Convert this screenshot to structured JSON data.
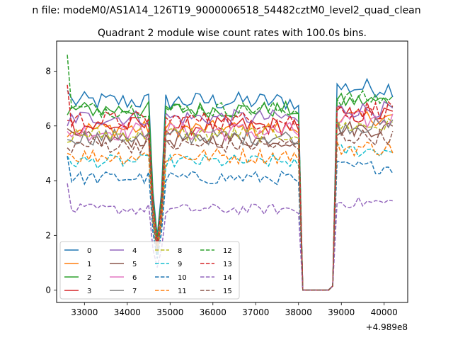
{
  "figure": {
    "suptitle": "n file: modeM0/AS1A14_126T19_9000006518_54482cztM0_level2_quad_clean"
  },
  "chart_data": {
    "type": "line",
    "title": "Quadrant 2 module wise count rates with 100.0s bins.",
    "xlabel": "",
    "ylabel": "",
    "x_offset_label": "+4.989e8",
    "xlim": [
      32350,
      40550
    ],
    "ylim": [
      -0.45,
      9.1
    ],
    "xticks": [
      33000,
      34000,
      35000,
      36000,
      37000,
      38000,
      39000,
      40000
    ],
    "xtick_labels": [
      "33000",
      "34000",
      "35000",
      "36000",
      "37000",
      "38000",
      "39000",
      "40000"
    ],
    "yticks": [
      0,
      2,
      4,
      6,
      8
    ],
    "ytick_labels": [
      "0",
      "2",
      "4",
      "6",
      "8"
    ],
    "grid": false,
    "legend_position": "lower-left",
    "legend_columns": 4,
    "x_range": {
      "start": 32600,
      "end": 40200,
      "step": 100
    },
    "gaps": [
      {
        "x": [
          34600,
          34700,
          34800
        ],
        "depth": "drop"
      },
      {
        "x": [
          38100,
          38200,
          38300,
          38400,
          38500,
          38600,
          38700
        ],
        "value": 0.0
      }
    ],
    "series": [
      {
        "name": "0",
        "color": "#1f77b4",
        "style": "solid",
        "level_before": 6.9,
        "level_after": 7.4,
        "noise": 0.35,
        "first": 7.3,
        "dip": 3.6
      },
      {
        "name": "1",
        "color": "#ff7f0e",
        "style": "solid",
        "level_before": 5.9,
        "level_after": 6.3,
        "noise": 0.3,
        "first": 5.6,
        "dip": 3.0
      },
      {
        "name": "2",
        "color": "#2ca02c",
        "style": "solid",
        "level_before": 6.6,
        "level_after": 6.9,
        "noise": 0.3,
        "first": 6.4,
        "dip": 3.4
      },
      {
        "name": "3",
        "color": "#d62728",
        "style": "solid",
        "level_before": 6.0,
        "level_after": 6.4,
        "noise": 0.35,
        "first": 6.2,
        "dip": 3.1
      },
      {
        "name": "4",
        "color": "#9467bd",
        "style": "solid",
        "level_before": 6.3,
        "level_after": 6.6,
        "noise": 0.3,
        "first": 6.0,
        "dip": 3.2
      },
      {
        "name": "5",
        "color": "#8c564b",
        "style": "solid",
        "level_before": 5.5,
        "level_after": 5.9,
        "noise": 0.3,
        "first": 5.9,
        "dip": 2.8
      },
      {
        "name": "6",
        "color": "#e377c2",
        "style": "solid",
        "level_before": 5.8,
        "level_after": 6.2,
        "noise": 0.35,
        "first": 5.8,
        "dip": 2.9
      },
      {
        "name": "7",
        "color": "#7f7f7f",
        "style": "solid",
        "level_before": 5.6,
        "level_after": 6.0,
        "noise": 0.3,
        "first": 5.5,
        "dip": 2.7
      },
      {
        "name": "8",
        "color": "#bcbd22",
        "style": "dashed",
        "level_before": 5.7,
        "level_after": 6.0,
        "noise": 0.3,
        "first": 5.4,
        "dip": 2.8
      },
      {
        "name": "9",
        "color": "#17becf",
        "style": "dashed",
        "level_before": 4.7,
        "level_after": 5.1,
        "noise": 0.25,
        "first": 4.9,
        "dip": 2.4
      },
      {
        "name": "10",
        "color": "#1f77b4",
        "style": "dashed",
        "level_before": 4.1,
        "level_after": 4.5,
        "noise": 0.25,
        "first": 4.9,
        "dip": 2.1
      },
      {
        "name": "11",
        "color": "#ff7f0e",
        "style": "dashed",
        "level_before": 4.9,
        "level_after": 5.2,
        "noise": 0.3,
        "first": 5.0,
        "dip": 2.5
      },
      {
        "name": "12",
        "color": "#2ca02c",
        "style": "dashed",
        "level_before": 6.6,
        "level_after": 7.0,
        "noise": 0.3,
        "first": 8.6,
        "dip": 3.3
      },
      {
        "name": "13",
        "color": "#d62728",
        "style": "dashed",
        "level_before": 6.2,
        "level_after": 6.6,
        "noise": 0.35,
        "first": 7.5,
        "dip": 3.1
      },
      {
        "name": "14",
        "color": "#9467bd",
        "style": "dashed",
        "level_before": 2.95,
        "level_after": 3.2,
        "noise": 0.2,
        "first": 3.9,
        "dip": 1.5
      },
      {
        "name": "15",
        "color": "#8c564b",
        "style": "dashed",
        "level_before": 5.3,
        "level_after": 5.6,
        "noise": 0.3,
        "first": 5.2,
        "dip": 2.6
      }
    ]
  }
}
